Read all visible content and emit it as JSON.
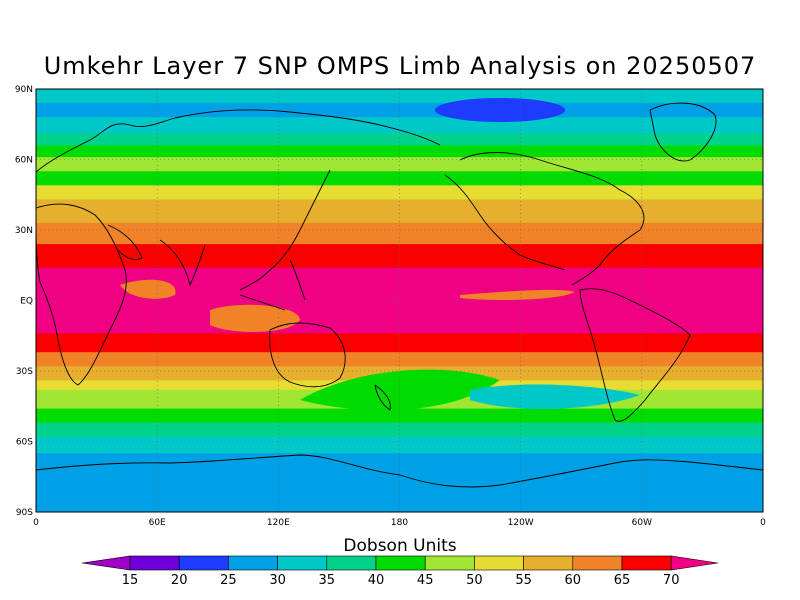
{
  "title": "Umkehr Layer 7 SNP OMPS Limb Analysis on 20250507",
  "map": {
    "lat_labels": [
      "90N",
      "60N",
      "30N",
      "EQ",
      "30S",
      "60S",
      "90S"
    ],
    "lon_labels": [
      "0",
      "60E",
      "120E",
      "180",
      "120W",
      "60W",
      "0"
    ],
    "bands": [
      {
        "lat_top": 90,
        "lat_bot": 84,
        "value": 30
      },
      {
        "lat_top": 84,
        "lat_bot": 78,
        "value": 25
      },
      {
        "lat_top": 78,
        "lat_bot": 71,
        "value": 30
      },
      {
        "lat_top": 71,
        "lat_bot": 66,
        "value": 35
      },
      {
        "lat_top": 66,
        "lat_bot": 61,
        "value": 40
      },
      {
        "lat_top": 61,
        "lat_bot": 55,
        "value": 45
      },
      {
        "lat_top": 55,
        "lat_bot": 49,
        "value": 40
      },
      {
        "lat_top": 49,
        "lat_bot": 43,
        "value": 50
      },
      {
        "lat_top": 43,
        "lat_bot": 33,
        "value": 55
      },
      {
        "lat_top": 33,
        "lat_bot": 24,
        "value": 60
      },
      {
        "lat_top": 24,
        "lat_bot": 14,
        "value": 65
      },
      {
        "lat_top": 14,
        "lat_bot": -14,
        "value": 70
      },
      {
        "lat_top": -14,
        "lat_bot": -22,
        "value": 65
      },
      {
        "lat_top": -22,
        "lat_bot": -28,
        "value": 60
      },
      {
        "lat_top": -28,
        "lat_bot": -34,
        "value": 55
      },
      {
        "lat_top": -34,
        "lat_bot": -38,
        "value": 50
      },
      {
        "lat_top": -38,
        "lat_bot": -46,
        "value": 45
      },
      {
        "lat_top": -46,
        "lat_bot": -52,
        "value": 40
      },
      {
        "lat_top": -52,
        "lat_bot": -58,
        "value": 35
      },
      {
        "lat_top": -58,
        "lat_bot": -65,
        "value": 30
      },
      {
        "lat_top": -65,
        "lat_bot": -90,
        "value": 25
      }
    ]
  },
  "colorbar": {
    "title": "Dobson Units",
    "levels": [
      "15",
      "20",
      "25",
      "30",
      "35",
      "40",
      "45",
      "50",
      "55",
      "60",
      "65",
      "70"
    ],
    "colors": [
      "#a000c8",
      "#6e00dc",
      "#1e3cff",
      "#00a0e6",
      "#00c8c8",
      "#00d28c",
      "#00dc00",
      "#a0e632",
      "#e6dc32",
      "#e6af2d",
      "#f08228",
      "#fa0000",
      "#f00082"
    ]
  }
}
